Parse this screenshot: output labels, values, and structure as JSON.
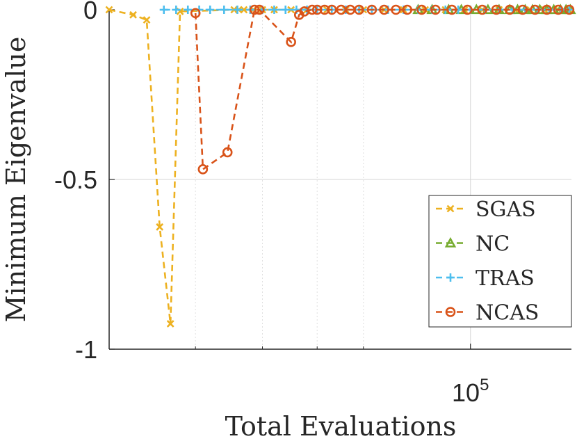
{
  "chart_data": {
    "type": "line",
    "title": "",
    "xlabel": "Total Evaluations",
    "ylabel": "Minimum Eigenvalue",
    "x_scale": "log",
    "xlim": [
      30000,
      140000
    ],
    "ylim": [
      -1,
      0
    ],
    "grid": true,
    "legend_location": "bottom-right",
    "y_ticks": [
      {
        "value": 0,
        "label": "0"
      },
      {
        "value": -0.5,
        "label": "-0.5"
      },
      {
        "value": -1,
        "label": "-1"
      }
    ],
    "x_ticks_major": [
      {
        "value": 100000,
        "base": "10",
        "exponent": "5"
      }
    ],
    "x_ticks_minor": [
      40000,
      50000,
      60000,
      70000
    ],
    "series": [
      {
        "name": "SGAS",
        "color": "#EDB120",
        "marker": "x",
        "x": [
          30000,
          32500,
          34000,
          35500,
          36800,
          38000,
          45500,
          46200,
          47000,
          48500,
          50000,
          52000,
          55000,
          58000,
          62000,
          66000,
          70000,
          75000,
          80000,
          86000,
          92000,
          98000,
          104000,
          110000,
          116000,
          122000,
          128000,
          134000,
          139000
        ],
        "values": [
          0,
          -0.015,
          -0.03,
          -0.64,
          -0.925,
          -0.005,
          0,
          0,
          0,
          0,
          0,
          0,
          0,
          0,
          0,
          0,
          0,
          0,
          0,
          0,
          0,
          0,
          0,
          0,
          0,
          0,
          0,
          0,
          0
        ]
      },
      {
        "name": "NC",
        "color": "#77AC30",
        "marker": "^",
        "x": [
          84000,
          88000,
          93000,
          97000,
          102000,
          106000,
          110000,
          114000,
          117000,
          120000,
          123000,
          126000,
          129000,
          132000,
          135000,
          137500,
          139500
        ],
        "values": [
          0,
          0,
          0,
          0,
          0,
          0,
          0,
          0,
          0,
          0,
          0,
          0,
          0,
          0,
          0,
          0,
          0
        ]
      },
      {
        "name": "TRAS",
        "color": "#4DBEEE",
        "marker": "+",
        "x": [
          36000,
          37500,
          39000,
          40500,
          42000,
          44000,
          46000,
          48000,
          50000,
          52000,
          54000,
          56000,
          58000,
          60000,
          63000,
          66000,
          69000,
          72000,
          76000,
          80000,
          84000,
          88000,
          92000,
          96000,
          100000,
          105000,
          110000,
          115000,
          120000,
          125000,
          130000,
          135000,
          139000
        ],
        "values": [
          0,
          0,
          0,
          0,
          0,
          0,
          0,
          0,
          0,
          0,
          0,
          0,
          0,
          0,
          0,
          0,
          0,
          0,
          0,
          0,
          0,
          0,
          0,
          0,
          0,
          0,
          0,
          0,
          0,
          0,
          0,
          0,
          0
        ]
      },
      {
        "name": "NCAS",
        "color": "#D95319",
        "marker": "o",
        "x": [
          40000,
          41000,
          44500,
          48700,
          49500,
          55000,
          56500,
          57500,
          59000,
          60000,
          61500,
          63000,
          65000,
          67000,
          69000,
          72000,
          75000,
          78000,
          81000,
          85000,
          89000,
          94000,
          99000,
          104000,
          109000,
          114000,
          119000,
          124000,
          129000,
          134000,
          139000
        ],
        "values": [
          -0.01,
          -0.47,
          -0.42,
          0,
          0,
          -0.095,
          -0.015,
          -0.005,
          0,
          0,
          0,
          0,
          0,
          0,
          0,
          0,
          0,
          0,
          0,
          0,
          0,
          0,
          0,
          0,
          0,
          0,
          0,
          0,
          0,
          0,
          0
        ]
      }
    ]
  }
}
